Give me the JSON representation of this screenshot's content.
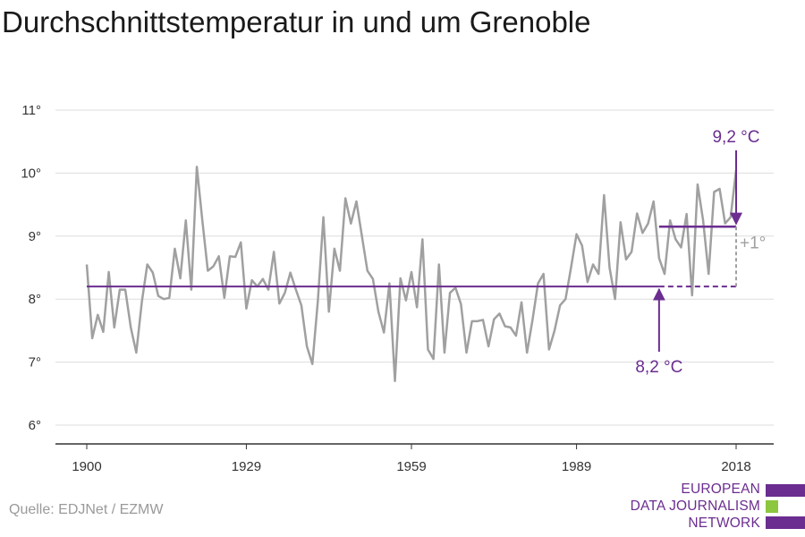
{
  "header": {
    "title": "Durchschnittstemperatur in und um Grenoble"
  },
  "footer": {
    "source": "Quelle: EDJNet / EZMW"
  },
  "logo": {
    "line1": "EUROPEAN",
    "line2": "DATA JOURNALISM",
    "line3": "NETWORK",
    "colors": {
      "purple": "#6b2d90",
      "green": "#8dc63f"
    }
  },
  "colors": {
    "series": "#a0a0a0",
    "reference": "#6b2d90",
    "diff": "#a0a0a0",
    "grid": "#dddddd",
    "axis": "#333333",
    "tick_text": "#333333"
  },
  "chart_data": {
    "type": "line",
    "title": "Durchschnittstemperatur in und um Grenoble",
    "xlabel": "",
    "ylabel": "",
    "xlim": [
      1900,
      2018
    ],
    "ylim": [
      6,
      11
    ],
    "x_ticks": [
      1900,
      1929,
      1959,
      1989,
      2018
    ],
    "x_tick_labels": [
      "1900",
      "1929",
      "1959",
      "1989",
      "2018"
    ],
    "y_ticks": [
      6,
      7,
      8,
      9,
      10,
      11
    ],
    "y_tick_labels": [
      "6°",
      "7°",
      "8°",
      "9°",
      "10°",
      "11°"
    ],
    "grid": "horizontal",
    "series": [
      {
        "x": [
          1900,
          1901,
          1902,
          1903,
          1904,
          1905,
          1906,
          1907,
          1908,
          1909,
          1910,
          1911,
          1912,
          1913,
          1914,
          1915,
          1916,
          1917,
          1918,
          1919,
          1920,
          1921,
          1922,
          1923,
          1924,
          1925,
          1926,
          1927,
          1928,
          1929,
          1930,
          1931,
          1932,
          1933,
          1934,
          1935,
          1936,
          1937,
          1938,
          1939,
          1940,
          1941,
          1942,
          1943,
          1944,
          1945,
          1946,
          1947,
          1948,
          1949,
          1950,
          1951,
          1952,
          1953,
          1954,
          1955,
          1956,
          1957,
          1958,
          1959,
          1960,
          1961,
          1962,
          1963,
          1964,
          1965,
          1966,
          1967,
          1968,
          1969,
          1970,
          1971,
          1972,
          1973,
          1974,
          1975,
          1976,
          1977,
          1978,
          1979,
          1980,
          1981,
          1982,
          1983,
          1984,
          1985,
          1986,
          1987,
          1988,
          1989,
          1990,
          1991,
          1992,
          1993,
          1994,
          1995,
          1996,
          1997,
          1998,
          1999,
          2000,
          2001,
          2002,
          2003,
          2004,
          2005,
          2006,
          2007,
          2008,
          2009,
          2010,
          2011,
          2012,
          2013,
          2014,
          2015,
          2016,
          2017,
          2018
        ],
        "values": [
          8.55,
          7.38,
          7.75,
          7.48,
          8.43,
          7.55,
          8.15,
          8.15,
          7.55,
          7.15,
          7.95,
          8.55,
          8.42,
          8.05,
          8.0,
          8.02,
          8.8,
          8.33,
          9.25,
          8.15,
          10.1,
          9.25,
          8.45,
          8.52,
          8.68,
          8.02,
          8.68,
          8.67,
          8.9,
          7.85,
          8.3,
          8.2,
          8.32,
          8.15,
          8.75,
          7.93,
          8.1,
          8.42,
          8.15,
          7.9,
          7.25,
          6.97,
          7.98,
          9.3,
          7.8,
          8.8,
          8.45,
          9.6,
          9.2,
          9.55,
          9.0,
          8.45,
          8.32,
          7.8,
          7.47,
          8.25,
          6.7,
          8.33,
          7.98,
          8.43,
          7.87,
          8.95,
          7.2,
          7.05,
          8.55,
          7.15,
          8.1,
          8.18,
          7.92,
          7.15,
          7.65,
          7.65,
          7.67,
          7.25,
          7.68,
          7.77,
          7.57,
          7.55,
          7.42,
          7.95,
          7.15,
          7.67,
          8.25,
          8.4,
          7.2,
          7.5,
          7.9,
          8.0,
          8.5,
          9.03,
          8.85,
          8.27,
          8.55,
          8.4,
          9.65,
          8.5,
          8.0,
          9.22,
          8.63,
          8.75,
          9.36,
          9.05,
          9.2,
          9.55,
          8.65,
          8.4,
          9.25,
          8.95,
          8.82,
          9.35,
          8.06,
          9.82,
          9.25,
          8.4,
          9.7,
          9.75,
          9.2,
          9.3,
          10.05
        ]
      }
    ],
    "reference_lines": {
      "baseline_value": 8.2,
      "baseline_x": [
        1900,
        2018
      ],
      "recent_value": 9.15,
      "recent_x": [
        2004,
        2018
      ]
    },
    "annotations": {
      "recent_label": "9,2 °C",
      "baseline_label": "8,2 °C",
      "diff_label": "+1°",
      "recent_arrow_x": 2018,
      "baseline_arrow_x": 2004
    }
  }
}
